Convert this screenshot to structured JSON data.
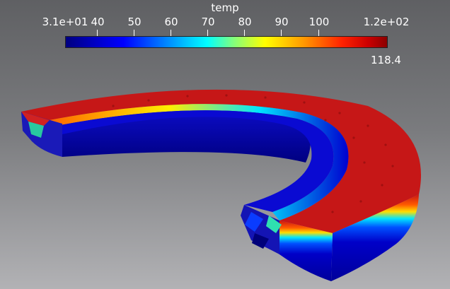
{
  "legend": {
    "title": "temp",
    "ticks": [
      "3.1e+01",
      "40",
      "50",
      "60",
      "70",
      "80",
      "90",
      "100",
      "1.2e+02"
    ],
    "current_value": "118.4"
  },
  "colors": {
    "cold": "#0000b4",
    "hot": "#c81414",
    "background_top": "#5f6063",
    "background_bottom": "#b2b2b5"
  }
}
